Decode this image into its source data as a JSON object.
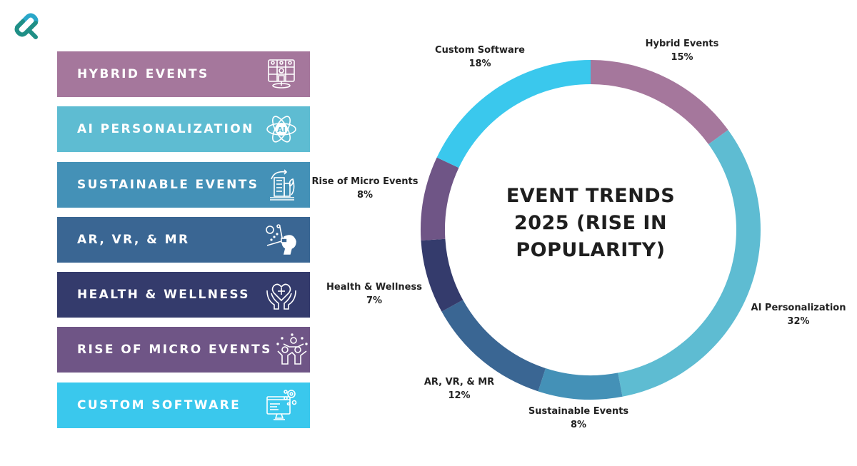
{
  "logo": {
    "icon": "link-s-logo",
    "colors": [
      "#2aa7c9",
      "#1f8f86"
    ]
  },
  "banners": [
    {
      "label": "HYBRID EVENTS",
      "icon": "video-conference-icon",
      "color": "#a5779c"
    },
    {
      "label": "AI PERSONALIZATION",
      "icon": "ai-atom-icon",
      "color": "#5ebcd2"
    },
    {
      "label": "SUSTAINABLE EVENTS",
      "icon": "green-building-icon",
      "color": "#4491b7"
    },
    {
      "label": "AR, VR, & MR",
      "icon": "vr-headset-icon",
      "color": "#3a6693"
    },
    {
      "label": "HEALTH & WELLNESS",
      "icon": "heart-hands-icon",
      "color": "#343b6c"
    },
    {
      "label": "RISE OF MICRO EVENTS",
      "icon": "celebrating-people-icon",
      "color": "#6f5586"
    },
    {
      "label": "CUSTOM SOFTWARE",
      "icon": "computer-gears-icon",
      "color": "#3ac8ed"
    }
  ],
  "chart_data": {
    "type": "pie",
    "variant": "donut",
    "title": "EVENT TRENDS 2025 (RISE IN POPULARITY)",
    "title_lines": [
      "EVENT TRENDS",
      "2025 (RISE IN",
      "POPULARITY)"
    ],
    "categories": [
      "Hybrid Events",
      "AI Personalization",
      "Sustainable Events",
      "AR, VR, & MR",
      "Health & Wellness",
      "Rise of Micro Events",
      "Custom Software"
    ],
    "values": [
      15,
      32,
      8,
      12,
      7,
      8,
      18
    ],
    "unit": "%",
    "value_labels": [
      "15%",
      "32%",
      "8%",
      "12%",
      "7%",
      "8%",
      "18%"
    ],
    "colors": [
      "#a5779c",
      "#5ebcd2",
      "#4491b7",
      "#3a6693",
      "#343b6c",
      "#6f5586",
      "#3ac8ed"
    ],
    "start_angle": "top",
    "direction": "clockwise",
    "legend": "none (labels outside slices)"
  }
}
